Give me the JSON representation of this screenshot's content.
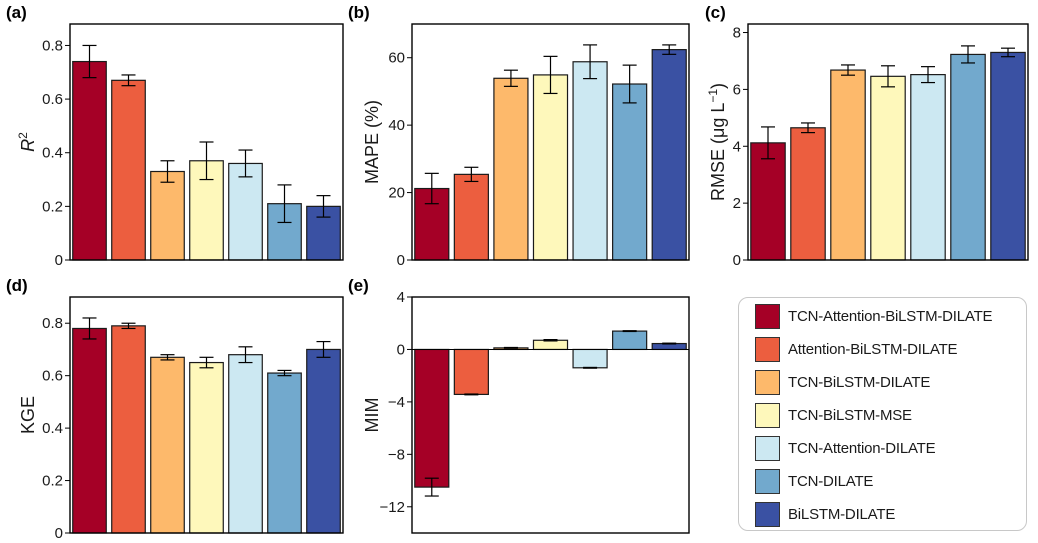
{
  "chart_data": {
    "type": "bar",
    "categories": [
      "TCN-Attention-BiLSTM-DILATE",
      "Attention-BiLSTM-DILATE",
      "TCN-BiLSTM-DILATE",
      "TCN-BiLSTM-MSE",
      "TCN-Attention-DILATE",
      "TCN-DILATE",
      "BiLSTM-DILATE"
    ],
    "colors": [
      "#a50026",
      "#ec5e3f",
      "#fdb96b",
      "#fef8bb",
      "#cce8f2",
      "#72a9cd",
      "#3a51a3"
    ],
    "legend": {
      "placement": "bottom-right",
      "entries": [
        "TCN-Attention-BiLSTM-DILATE",
        "Attention-BiLSTM-DILATE",
        "TCN-BiLSTM-DILATE",
        "TCN-BiLSTM-MSE",
        "TCN-Attention-DILATE",
        "TCN-DILATE",
        "BiLSTM-DILATE"
      ]
    },
    "panels": [
      {
        "label": "(a)",
        "ylabel": "R",
        "ylabel_sup": "2",
        "ylim": [
          0,
          0.88
        ],
        "yticks": [
          0,
          0.2,
          0.4,
          0.6,
          0.8
        ],
        "ytick_labels": [
          "0",
          "0.2",
          "0.4",
          "0.6",
          "0.8"
        ],
        "values": [
          0.74,
          0.67,
          0.33,
          0.37,
          0.36,
          0.21,
          0.2
        ],
        "errors": [
          0.06,
          0.02,
          0.04,
          0.07,
          0.05,
          0.07,
          0.04
        ]
      },
      {
        "label": "(b)",
        "ylabel": "MAPE (%)",
        "ylim": [
          0,
          70
        ],
        "yticks": [
          0,
          20,
          40,
          60
        ],
        "ytick_labels": [
          "0",
          "20",
          "40",
          "60"
        ],
        "values": [
          21.2,
          25.4,
          53.9,
          54.9,
          58.8,
          52.2,
          62.4
        ],
        "errors": [
          4.5,
          2.1,
          2.4,
          5.5,
          5.0,
          5.6,
          1.4
        ]
      },
      {
        "label": "(c)",
        "ylabel": "RMSE (μg L",
        "ylabel_sup": "−1",
        "ylabel_end": ")",
        "ylim": [
          0,
          8.3
        ],
        "yticks": [
          0,
          2,
          4,
          6,
          8
        ],
        "ytick_labels": [
          "0",
          "2",
          "4",
          "6",
          "8"
        ],
        "values": [
          4.12,
          4.65,
          6.68,
          6.46,
          6.52,
          7.23,
          7.3
        ],
        "errors": [
          0.56,
          0.17,
          0.18,
          0.37,
          0.28,
          0.3,
          0.15
        ]
      },
      {
        "label": "(d)",
        "ylabel": "KGE",
        "ylim": [
          0,
          0.9
        ],
        "yticks": [
          0,
          0.2,
          0.4,
          0.6,
          0.8
        ],
        "ytick_labels": [
          "0",
          "0.2",
          "0.4",
          "0.6",
          "0.8"
        ],
        "values": [
          0.78,
          0.79,
          0.67,
          0.65,
          0.68,
          0.61,
          0.7
        ],
        "errors": [
          0.04,
          0.01,
          0.01,
          0.02,
          0.03,
          0.01,
          0.03
        ]
      },
      {
        "label": "(e)",
        "ylabel": "MIM",
        "ylim": [
          -14,
          4
        ],
        "yticks": [
          -12,
          -8,
          -4,
          0,
          4
        ],
        "ytick_labels": [
          "−12",
          "−8",
          "−4",
          "0",
          "4"
        ],
        "zero_line": true,
        "values": [
          -10.5,
          -3.43,
          0.12,
          0.7,
          -1.4,
          1.4,
          0.45
        ],
        "errors": [
          0.68,
          0.03,
          0.03,
          0.05,
          0.03,
          0.03,
          0.03
        ]
      }
    ]
  }
}
